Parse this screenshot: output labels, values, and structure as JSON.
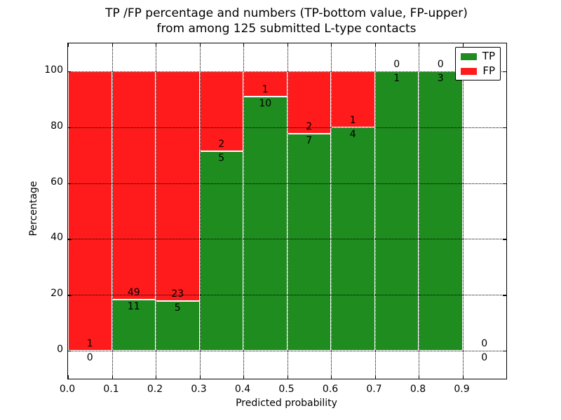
{
  "title": {
    "line1": "TP /FP percentage and numbers (TP-bottom value, FP-upper)",
    "line2": "from among 125 submitted L-type contacts"
  },
  "chart_data": {
    "type": "bar",
    "stacked": true,
    "normalized_to_percent": true,
    "title": "TP /FP percentage and numbers (TP-bottom value, FP-upper) from among 125 submitted L-type contacts",
    "xlabel": "Predicted probability",
    "ylabel": "Percentage",
    "xlim": [
      0.0,
      1.0
    ],
    "ylim": [
      -10,
      110
    ],
    "bin_width": 0.1,
    "xticks": [
      "0.0",
      "0.1",
      "0.2",
      "0.3",
      "0.4",
      "0.5",
      "0.6",
      "0.7",
      "0.8",
      "0.9"
    ],
    "yticks": [
      0,
      20,
      40,
      60,
      80,
      100
    ],
    "grid": "dotted",
    "colors": {
      "tp": "#1e8c1e",
      "fp": "#ff1b1b"
    },
    "legend": {
      "position": "upper-right",
      "entries": [
        {
          "label": "TP",
          "color": "#1e8c1e"
        },
        {
          "label": "FP",
          "color": "#ff1b1b"
        }
      ]
    },
    "categories": [
      "0.0-0.1",
      "0.1-0.2",
      "0.2-0.3",
      "0.3-0.4",
      "0.4-0.5",
      "0.5-0.6",
      "0.6-0.7",
      "0.7-0.8",
      "0.8-0.9",
      "0.9-1.0"
    ],
    "series": [
      {
        "name": "TP",
        "values": [
          0,
          11,
          5,
          5,
          10,
          7,
          4,
          1,
          3,
          0
        ]
      },
      {
        "name": "FP",
        "values": [
          1,
          49,
          23,
          2,
          1,
          2,
          1,
          0,
          0,
          0
        ]
      }
    ],
    "total_submitted": 125
  }
}
